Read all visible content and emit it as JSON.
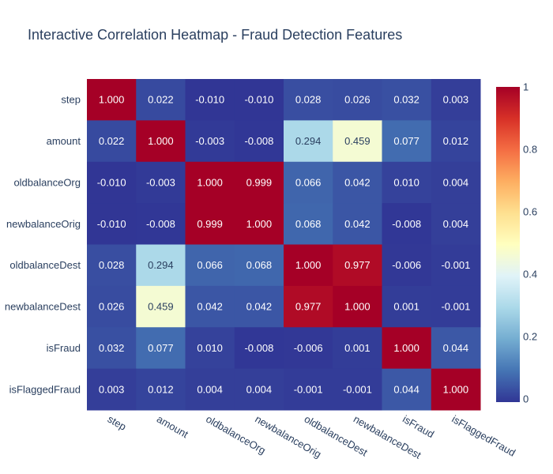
{
  "chart_data": {
    "type": "heatmap",
    "title": "Interactive Correlation Heatmap - Fraud Detection Features",
    "xlabel": "",
    "ylabel": "",
    "x": [
      "step",
      "amount",
      "oldbalanceOrg",
      "newbalanceOrig",
      "oldbalanceDest",
      "newbalanceDest",
      "isFraud",
      "isFlaggedFraud"
    ],
    "y": [
      "step",
      "amount",
      "oldbalanceOrg",
      "newbalanceOrig",
      "oldbalanceDest",
      "newbalanceDest",
      "isFraud",
      "isFlaggedFraud"
    ],
    "z": [
      [
        1.0,
        0.022,
        -0.01,
        -0.01,
        0.028,
        0.026,
        0.032,
        0.003
      ],
      [
        0.022,
        1.0,
        -0.003,
        -0.008,
        0.294,
        0.459,
        0.077,
        0.012
      ],
      [
        -0.01,
        -0.003,
        1.0,
        0.999,
        0.066,
        0.042,
        0.01,
        0.004
      ],
      [
        -0.01,
        -0.008,
        0.999,
        1.0,
        0.068,
        0.042,
        -0.008,
        0.004
      ],
      [
        0.028,
        0.294,
        0.066,
        0.068,
        1.0,
        0.977,
        -0.006,
        -0.001
      ],
      [
        0.026,
        0.459,
        0.042,
        0.042,
        0.977,
        1.0,
        0.001,
        -0.001
      ],
      [
        0.032,
        0.077,
        0.01,
        -0.008,
        -0.006,
        0.001,
        1.0,
        0.044
      ],
      [
        0.003,
        0.012,
        0.004,
        0.004,
        -0.001,
        -0.001,
        0.044,
        1.0
      ]
    ],
    "cell_labels": [
      [
        "1.000",
        "0.022",
        "-0.010",
        "-0.010",
        "0.028",
        "0.026",
        "0.032",
        "0.003"
      ],
      [
        "0.022",
        "1.000",
        "-0.003",
        "-0.008",
        "0.294",
        "0.459",
        "0.077",
        "0.012"
      ],
      [
        "-0.010",
        "-0.003",
        "1.000",
        "0.999",
        "0.066",
        "0.042",
        "0.010",
        "0.004"
      ],
      [
        "-0.010",
        "-0.008",
        "0.999",
        "1.000",
        "0.068",
        "0.042",
        "-0.008",
        "0.004"
      ],
      [
        "0.028",
        "0.294",
        "0.066",
        "0.068",
        "1.000",
        "0.977",
        "-0.006",
        "-0.001"
      ],
      [
        "0.026",
        "0.459",
        "0.042",
        "0.042",
        "0.977",
        "1.000",
        "0.001",
        "-0.001"
      ],
      [
        "0.032",
        "0.077",
        "0.010",
        "-0.008",
        "-0.006",
        "0.001",
        "1.000",
        "0.044"
      ],
      [
        "0.003",
        "0.012",
        "0.004",
        "0.004",
        "-0.001",
        "-0.001",
        "0.044",
        "1.000"
      ]
    ],
    "colorscale": "RdYlBu (reversed)",
    "colorbar": {
      "range": [
        -0.01,
        1.0
      ],
      "ticks": [
        0,
        0.2,
        0.4,
        0.6,
        0.8,
        1
      ],
      "tick_labels": [
        "0",
        "0.2",
        "0.4",
        "0.6",
        "0.8",
        "1"
      ]
    }
  },
  "colors": {
    "title": "#2a3f5f",
    "axis_text": "#2a3f5f",
    "background": "#ffffff"
  }
}
